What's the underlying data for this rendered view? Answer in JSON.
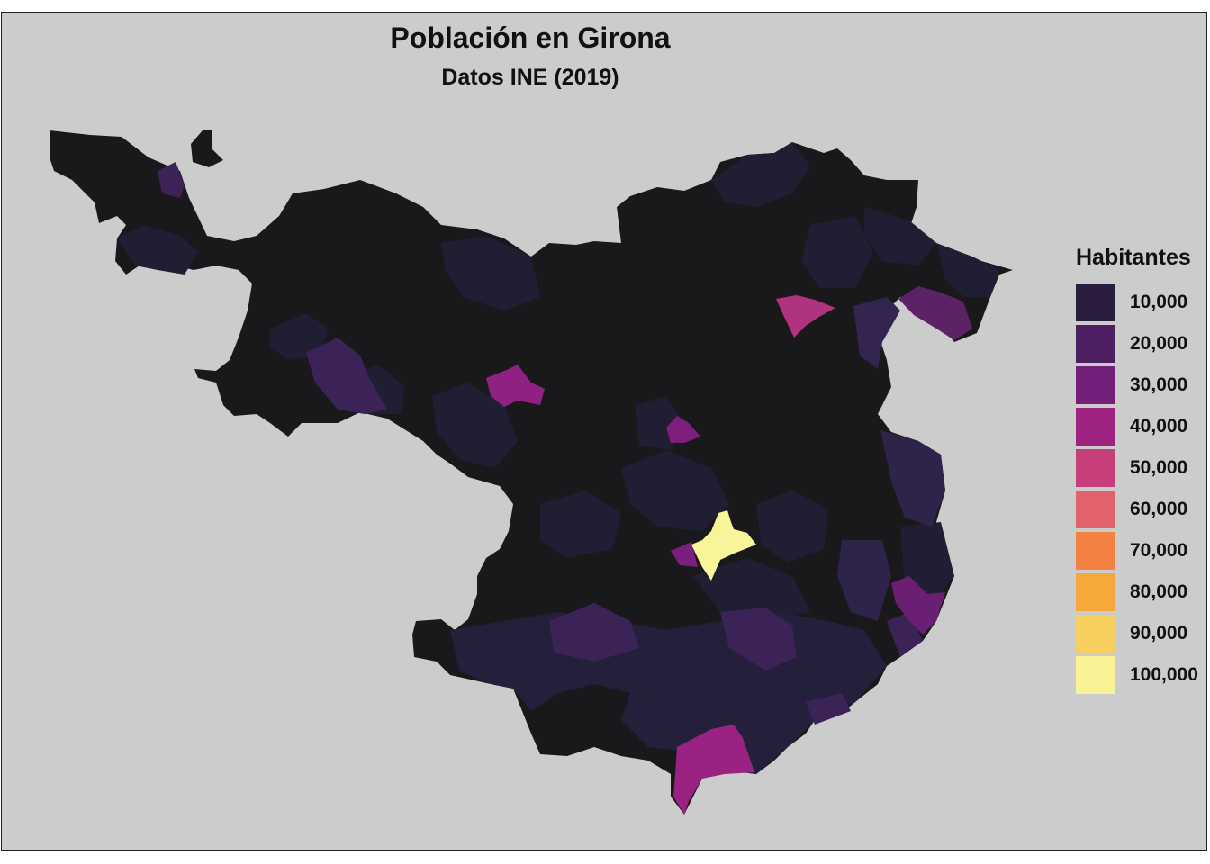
{
  "title": "Población en Girona",
  "subtitle": "Datos INE (2019)",
  "legend": {
    "title": "Habitantes",
    "items": [
      {
        "label": "10,000",
        "color": "#2b1d40"
      },
      {
        "label": "20,000",
        "color": "#4d1f62"
      },
      {
        "label": "30,000",
        "color": "#74207a"
      },
      {
        "label": "40,000",
        "color": "#9e2381"
      },
      {
        "label": "50,000",
        "color": "#c63f7a"
      },
      {
        "label": "60,000",
        "color": "#e2626b"
      },
      {
        "label": "70,000",
        "color": "#f28241"
      },
      {
        "label": "80,000",
        "color": "#f5a93b"
      },
      {
        "label": "90,000",
        "color": "#f6cf5f"
      },
      {
        "label": "100,000",
        "color": "#f8f397"
      }
    ]
  },
  "colors": {
    "panel_background": "#cccccc",
    "base_region": "#19191c",
    "low_population": "#1d1c2e"
  }
}
